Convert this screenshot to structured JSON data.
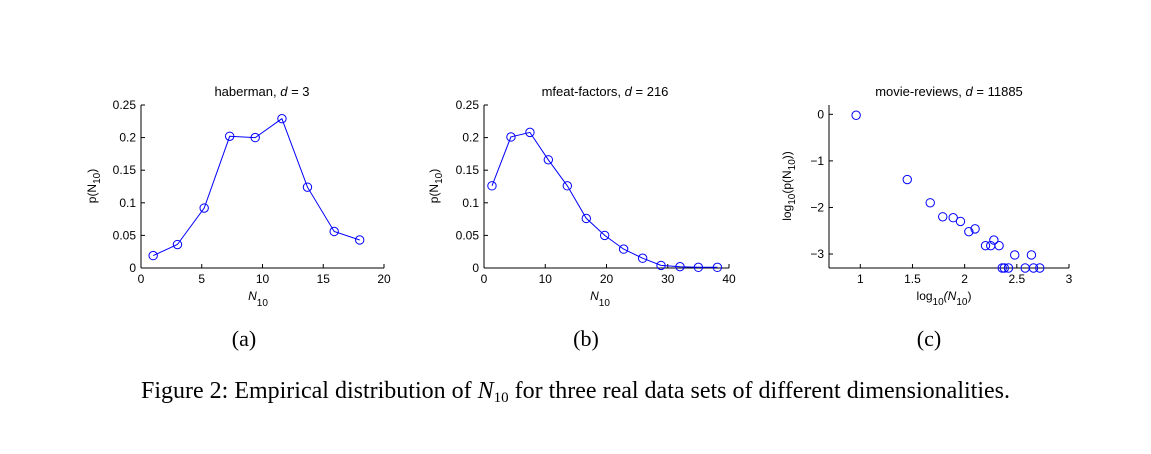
{
  "chart_data": [
    {
      "type": "line",
      "title": "haberman,",
      "title_var": "d",
      "title_val": "= 3",
      "panel_label": "(a)",
      "xlabel_base": "N",
      "xlabel_sub": "10",
      "ylabel_pre": "p(N",
      "ylabel_sub": "10",
      "ylabel_post": ")",
      "xlim": [
        0,
        20
      ],
      "ylim": [
        0,
        0.25
      ],
      "xticks": [
        0,
        5,
        10,
        15,
        20
      ],
      "yticks": [
        0,
        0.05,
        0.1,
        0.15,
        0.2,
        0.25
      ],
      "xtick_labels": [
        "0",
        "5",
        "10",
        "15",
        "20"
      ],
      "ytick_labels": [
        "0",
        "0.05",
        "0.1",
        "0.15",
        "0.2",
        "0.25"
      ],
      "color": "#0000ff",
      "markers": "circle",
      "x": [
        1,
        3,
        5.2,
        7.3,
        9.4,
        11.6,
        13.7,
        15.9,
        18
      ],
      "y": [
        0.019,
        0.036,
        0.092,
        0.202,
        0.2,
        0.229,
        0.124,
        0.056,
        0.043
      ]
    },
    {
      "type": "line",
      "title": "mfeat-factors,",
      "title_var": "d",
      "title_val": "= 216",
      "panel_label": "(b)",
      "xlabel_base": "N",
      "xlabel_sub": "10",
      "ylabel_pre": "p(N",
      "ylabel_sub": "10",
      "ylabel_post": ")",
      "xlim": [
        0,
        40
      ],
      "ylim": [
        0,
        0.25
      ],
      "xticks": [
        0,
        10,
        20,
        30,
        40
      ],
      "yticks": [
        0,
        0.05,
        0.1,
        0.15,
        0.2,
        0.25
      ],
      "xtick_labels": [
        "0",
        "10",
        "20",
        "30",
        "40"
      ],
      "ytick_labels": [
        "0",
        "0.05",
        "0.1",
        "0.15",
        "0.2",
        "0.25"
      ],
      "color": "#0000ff",
      "markers": "circle",
      "x": [
        1.3,
        4.4,
        7.5,
        10.5,
        13.6,
        16.7,
        19.7,
        22.8,
        25.9,
        28.9,
        32,
        35,
        38.1
      ],
      "y": [
        0.126,
        0.201,
        0.208,
        0.166,
        0.126,
        0.076,
        0.05,
        0.029,
        0.015,
        0.004,
        0.002,
        0.001,
        0.001
      ]
    },
    {
      "type": "scatter",
      "title": "movie-reviews,",
      "title_var": "d",
      "title_val": "= 11885",
      "panel_label": "(c)",
      "xlabel_pre": "log",
      "xlabel_sub1": "10",
      "xlabel_mid": "(N",
      "xlabel_sub2": "10",
      "xlabel_post": ")",
      "ylabel_pre": "log",
      "ylabel_sub1": "10",
      "ylabel_mid": "(p(N",
      "ylabel_sub2": "10",
      "ylabel_post": "))",
      "xlim": [
        0.7,
        3
      ],
      "ylim": [
        -3.3,
        0.2
      ],
      "xticks": [
        1,
        1.5,
        2,
        2.5,
        3
      ],
      "yticks": [
        -3,
        -2,
        -1,
        0
      ],
      "xtick_labels": [
        "1",
        "1.5",
        "2",
        "2.5",
        "3"
      ],
      "ytick_labels": [
        "−3",
        "−2",
        "−1",
        "0"
      ],
      "color": "#0000ff",
      "markers": "circle",
      "x": [
        0.96,
        1.45,
        1.67,
        1.79,
        1.89,
        1.96,
        2.04,
        2.1,
        2.2,
        2.25,
        2.28,
        2.33,
        2.36,
        2.38,
        2.42,
        2.48,
        2.58,
        2.64,
        2.66,
        2.72
      ],
      "y": [
        -0.02,
        -1.4,
        -1.9,
        -2.2,
        -2.22,
        -2.3,
        -2.52,
        -2.46,
        -2.82,
        -2.82,
        -2.7,
        -2.82,
        -3.3,
        -3.3,
        -3.3,
        -3.02,
        -3.3,
        -3.02,
        -3.3,
        -3.3
      ]
    }
  ],
  "caption": {
    "prefix": "Figure 2: Empirical distribution of ",
    "var": "N",
    "var_sub": "10",
    "suffix": " for three real data sets of different dimensionalities."
  }
}
